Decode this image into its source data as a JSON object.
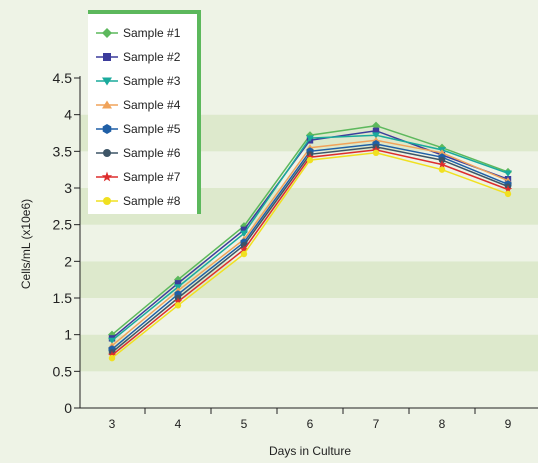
{
  "chart_data": {
    "type": "line",
    "title": "",
    "xlabel": "Days in Culture",
    "ylabel": "Cells/mL (x10e6)",
    "x": [
      "3",
      "4",
      "5",
      "6",
      "7",
      "8",
      "9"
    ],
    "yticks": [
      "0",
      "0.5",
      "1",
      "1.5",
      "2",
      "2.5",
      "3",
      "3.5",
      "4",
      "4.5"
    ],
    "ylim": [
      0,
      4.5
    ],
    "grid": "alternating horizontal bands",
    "legend_position": "top-left",
    "colors": {
      "band_dark": "#dde9cc",
      "band_light": "#eef3e6",
      "legend_bg": "#ffffff",
      "legend_border": "#5cb85c",
      "axis": "#222222"
    },
    "series": [
      {
        "name": "Sample #1",
        "color": "#5cb85c",
        "marker": "diamond",
        "values": [
          1.0,
          1.75,
          2.48,
          3.72,
          3.85,
          3.55,
          3.22
        ]
      },
      {
        "name": "Sample #2",
        "color": "#3c3c9c",
        "marker": "square",
        "values": [
          0.95,
          1.7,
          2.43,
          3.65,
          3.78,
          3.45,
          3.12
        ]
      },
      {
        "name": "Sample #3",
        "color": "#1aaa9c",
        "marker": "triangle-down",
        "values": [
          0.92,
          1.65,
          2.38,
          3.68,
          3.72,
          3.52,
          3.2
        ]
      },
      {
        "name": "Sample #4",
        "color": "#f0a35a",
        "marker": "triangle-up",
        "values": [
          0.85,
          1.6,
          2.3,
          3.55,
          3.65,
          3.48,
          3.1
        ]
      },
      {
        "name": "Sample #5",
        "color": "#1f5fa6",
        "marker": "hexagon",
        "values": [
          0.8,
          1.55,
          2.26,
          3.5,
          3.6,
          3.42,
          3.05
        ]
      },
      {
        "name": "Sample #6",
        "color": "#3d5566",
        "marker": "circle",
        "values": [
          0.76,
          1.5,
          2.22,
          3.46,
          3.56,
          3.38,
          3.02
        ]
      },
      {
        "name": "Sample #7",
        "color": "#dd2d2d",
        "marker": "star",
        "values": [
          0.72,
          1.45,
          2.16,
          3.42,
          3.52,
          3.32,
          2.98
        ]
      },
      {
        "name": "Sample #8",
        "color": "#f0e020",
        "marker": "circle",
        "values": [
          0.68,
          1.4,
          2.1,
          3.38,
          3.48,
          3.25,
          2.92
        ]
      }
    ]
  }
}
